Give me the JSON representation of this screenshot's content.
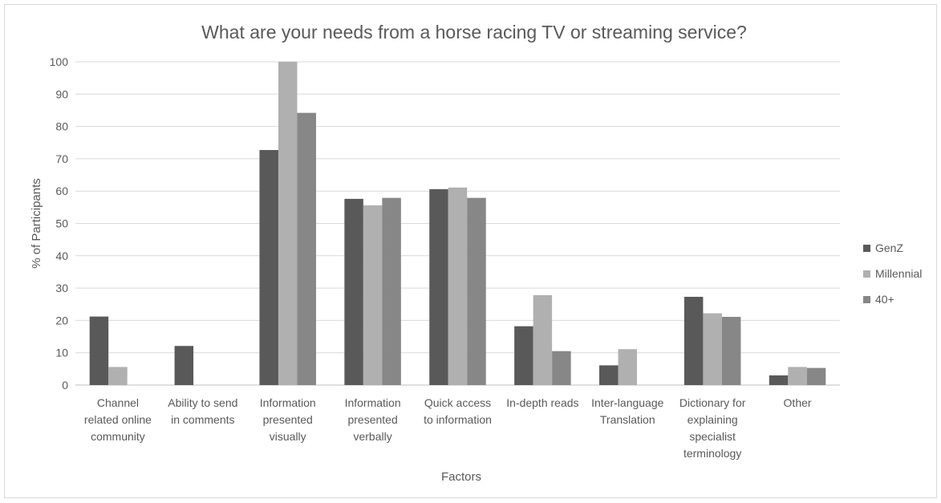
{
  "chart_data": {
    "type": "bar",
    "title": "What are your needs from a horse racing TV or streaming service?",
    "xlabel": "Factors",
    "ylabel": "% of Participants",
    "ylim": [
      0,
      100
    ],
    "yticks": [
      0,
      10,
      20,
      30,
      40,
      50,
      60,
      70,
      80,
      90,
      100
    ],
    "grid": true,
    "legend_position": "right",
    "categories": [
      [
        "Channel",
        "related online",
        "community"
      ],
      [
        "Ability to send",
        "in comments"
      ],
      [
        "Information",
        "presented",
        "visually"
      ],
      [
        "Information",
        "presented",
        "verbally"
      ],
      [
        "Quick access",
        "to information"
      ],
      [
        "In-depth reads"
      ],
      [
        "Inter-language",
        "Translation"
      ],
      [
        "Dictionary for",
        "explaining",
        "specialist",
        "terminology"
      ],
      [
        "Other"
      ]
    ],
    "series": [
      {
        "name": "GenZ",
        "color": "#595959",
        "values": [
          21.2,
          12.1,
          72.7,
          57.6,
          60.6,
          18.2,
          6.1,
          27.3,
          3.0
        ]
      },
      {
        "name": "Millennial",
        "color": "#b0b0b0",
        "values": [
          5.6,
          0,
          100,
          55.6,
          61.1,
          27.8,
          11.1,
          22.2,
          5.6
        ]
      },
      {
        "name": "40+",
        "color": "#878787",
        "values": [
          0,
          0,
          84.2,
          57.9,
          57.9,
          10.5,
          0,
          21.1,
          5.3
        ]
      }
    ]
  }
}
